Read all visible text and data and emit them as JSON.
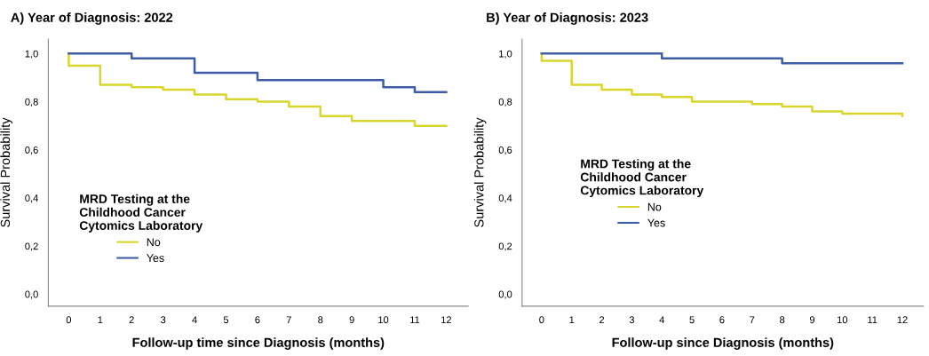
{
  "chart_data": [
    {
      "type": "step",
      "title": "A) Year of Diagnosis: 2022",
      "xlabel": "Follow-up time since Diagnosis (months)",
      "ylabel": "Survival Probability",
      "legend_title": "MRD Testing at the\nChildhood Cancer\nCytomics Laboratory",
      "legend": "lower left",
      "grid": false,
      "xlim": [
        -0.65,
        12.7
      ],
      "xticks": [
        0,
        1,
        2,
        3,
        4,
        5,
        6,
        7,
        8,
        9,
        10,
        11,
        12
      ],
      "ylim": [
        -0.05,
        1.06
      ],
      "yticks": [
        {
          "value": 0.0,
          "label": "0,0"
        },
        {
          "value": 0.2,
          "label": "0,2"
        },
        {
          "value": 0.4,
          "label": "0,4"
        },
        {
          "value": 0.6,
          "label": "0,6"
        },
        {
          "value": 0.8,
          "label": "0,8"
        },
        {
          "value": 1.0,
          "label": "1,0"
        }
      ],
      "series": [
        {
          "name": "No",
          "color": "#d8d62c",
          "x": [
            0,
            0,
            1,
            2,
            3,
            4,
            5,
            6,
            7,
            8,
            9,
            10,
            11,
            12
          ],
          "values": [
            1.0,
            0.95,
            0.87,
            0.86,
            0.85,
            0.83,
            0.81,
            0.8,
            0.78,
            0.74,
            0.72,
            0.72,
            0.7,
            0.7
          ]
        },
        {
          "name": "Yes",
          "color": "#3f5ca6",
          "x": [
            0,
            1,
            2,
            3,
            4,
            5,
            6,
            7,
            8,
            9,
            10,
            11,
            12
          ],
          "values": [
            1.0,
            1.0,
            0.98,
            0.98,
            0.92,
            0.92,
            0.89,
            0.89,
            0.89,
            0.89,
            0.86,
            0.84,
            0.84
          ]
        }
      ]
    },
    {
      "type": "step",
      "title": "B) Year of Diagnosis: 2023",
      "xlabel": "Follow-up since Diagnosis (months)",
      "ylabel": "Survival Probability",
      "legend_title": "MRD Testing at the\nChildhood Cancer\nCytomics Laboratory",
      "legend": "center left",
      "grid": false,
      "xlim": [
        -0.65,
        12.7
      ],
      "xticks": [
        0,
        1,
        2,
        3,
        4,
        5,
        6,
        7,
        8,
        9,
        10,
        11,
        12
      ],
      "ylim": [
        -0.05,
        1.06
      ],
      "yticks": [
        {
          "value": 0.0,
          "label": "0,0"
        },
        {
          "value": 0.2,
          "label": "0,2"
        },
        {
          "value": 0.4,
          "label": "0,4"
        },
        {
          "value": 0.6,
          "label": "0,6"
        },
        {
          "value": 0.8,
          "label": "0,8"
        },
        {
          "value": 1.0,
          "label": "1,0"
        }
      ],
      "series": [
        {
          "name": "No",
          "color": "#d8d62c",
          "x": [
            0,
            0,
            1,
            2,
            3,
            4,
            5,
            6,
            7,
            8,
            9,
            10,
            11,
            12,
            12
          ],
          "values": [
            1.0,
            0.97,
            0.87,
            0.85,
            0.83,
            0.82,
            0.8,
            0.8,
            0.79,
            0.78,
            0.76,
            0.75,
            0.75,
            0.75,
            0.74
          ]
        },
        {
          "name": "Yes",
          "color": "#3f5ca6",
          "x": [
            0,
            1,
            2,
            3,
            4,
            5,
            6,
            7,
            8,
            9,
            10,
            11,
            12
          ],
          "values": [
            1.0,
            1.0,
            1.0,
            1.0,
            0.98,
            0.98,
            0.98,
            0.98,
            0.96,
            0.96,
            0.96,
            0.96,
            0.96
          ]
        }
      ]
    }
  ]
}
